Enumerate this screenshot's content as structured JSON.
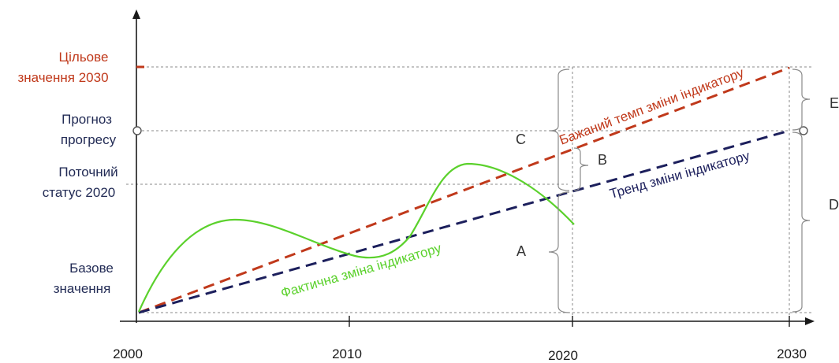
{
  "y_labels": {
    "target_line1": "Цільове",
    "target_line2": "значення 2030",
    "forecast_line1": "Прогноз",
    "forecast_line2": "прогресу",
    "current_line1": "Поточний",
    "current_line2": "статус 2020",
    "base_line1": "Базове",
    "base_line2": "значення"
  },
  "x_ticks": [
    "2000",
    "2010",
    "2020",
    "2030"
  ],
  "lines": {
    "desired": "Бажаний темп зміни індикатору",
    "trend": "Тренд зміни індикатору",
    "actual": "Фактична зміна індикатору"
  },
  "bracket_labels": {
    "a": "A",
    "b": "B",
    "c": "C",
    "d": "D",
    "e": "E"
  },
  "colors": {
    "axis": "#1a1a1a",
    "desired": "#c0391b",
    "trend": "#1c1f5c",
    "actual": "#5bd12c",
    "target_label": "#c0391b",
    "label": "#222b55",
    "guide": "#8a8a8a"
  }
}
